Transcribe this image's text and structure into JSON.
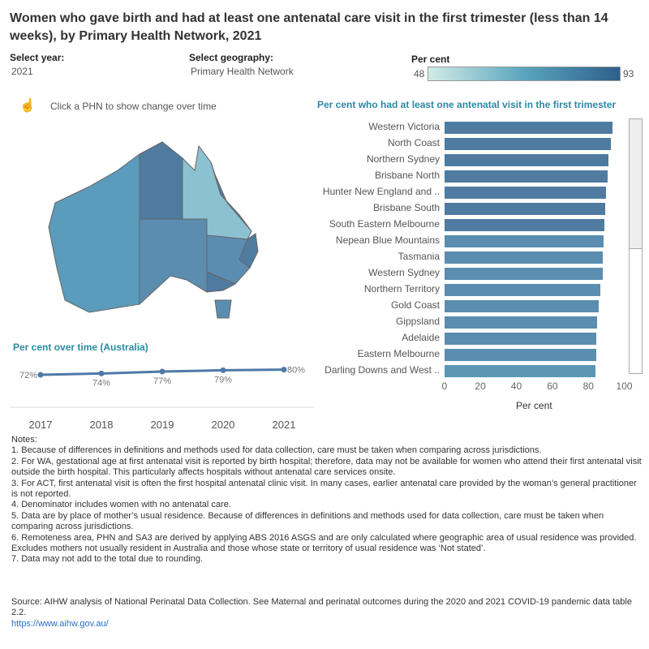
{
  "title": "Women who gave birth and had at least one antenatal care visit in the first trimester (less than 14 weeks), by Primary Health Network, 2021",
  "filters": {
    "year_label": "Select year:",
    "year_value": "2021",
    "geo_label": "Select geography:",
    "geo_value": "Primary Health Network"
  },
  "legend": {
    "title": "Per cent",
    "min": "48",
    "max": "93"
  },
  "map": {
    "hint": "Click a PHN to show change over time"
  },
  "colors": {
    "dark": "#4f7ba0",
    "mid": "#5a8db0",
    "light": "#8cc1d1"
  },
  "line_chart": {
    "title": "Per cent over time (Australia)",
    "years": [
      "2017",
      "2018",
      "2019",
      "2020",
      "2021"
    ],
    "values": [
      72,
      74,
      77,
      79,
      80
    ],
    "labels": [
      "72%",
      "74%",
      "77%",
      "79%",
      "80%"
    ]
  },
  "chart_data": {
    "type": "bar",
    "title": "Per cent who had at least one antenatal visit in the first trimester",
    "xlabel": "Per cent",
    "xlim": [
      0,
      100
    ],
    "ticks": [
      "0",
      "20",
      "40",
      "60",
      "80",
      "100"
    ],
    "categories": [
      "Western Victoria",
      "North Coast",
      "Northern Sydney",
      "Brisbane North",
      "Hunter New England and ..",
      "Brisbane South",
      "South Eastern Melbourne",
      "Nepean Blue Mountains",
      "Tasmania",
      "Western Sydney",
      "Northern Territory",
      "Gold Coast",
      "Gippsland",
      "Adelaide",
      "Eastern Melbourne",
      "Darling Downs and West .."
    ],
    "values": [
      93.2,
      92.2,
      91,
      90.5,
      89.6,
      89,
      88.7,
      88.3,
      87.8,
      87.8,
      86.5,
      85.6,
      84.7,
      84.3,
      84.3,
      83.8
    ]
  },
  "notes": [
    "Notes:",
    "1. Because of differences in definitions and methods used for data collection, care must be taken when comparing across jurisdictions.",
    "2. For WA, gestational age at first antenatal visit is reported by birth hospital; therefore, data may not be available for women who attend their first antenatal visit outside the birth hospital. This particularly affects hospitals without antenatal care services onsite.",
    "3. For ACT, first antenatal visit is often the first hospital antenatal clinic visit. In many cases, earlier antenatal care provided by the woman’s general practitioner is not reported.",
    "4. Denominator includes women with no antenatal care.",
    "5. Data are by place of mother’s usual residence. Because of differences in definitions and methods used for data collection, care must be taken when comparing across jurisdictions.",
    "6. Remoteness area, PHN and SA3 are derived by applying ABS 2016 ASGS and are only calculated where geographic area of usual residence was provided. Excludes mothers not usually resident in Australia and those whose state or territory of usual residence was ‘Not stated’.",
    "7. Data may not add to the total due to rounding."
  ],
  "source": "Source: AIHW analysis of National Perinatal Data Collection. See Maternal and perinatal outcomes during the 2020 and 2021 COVID-19 pandemic data table 2.2.",
  "link": "https://www.aihw.gov.au/"
}
